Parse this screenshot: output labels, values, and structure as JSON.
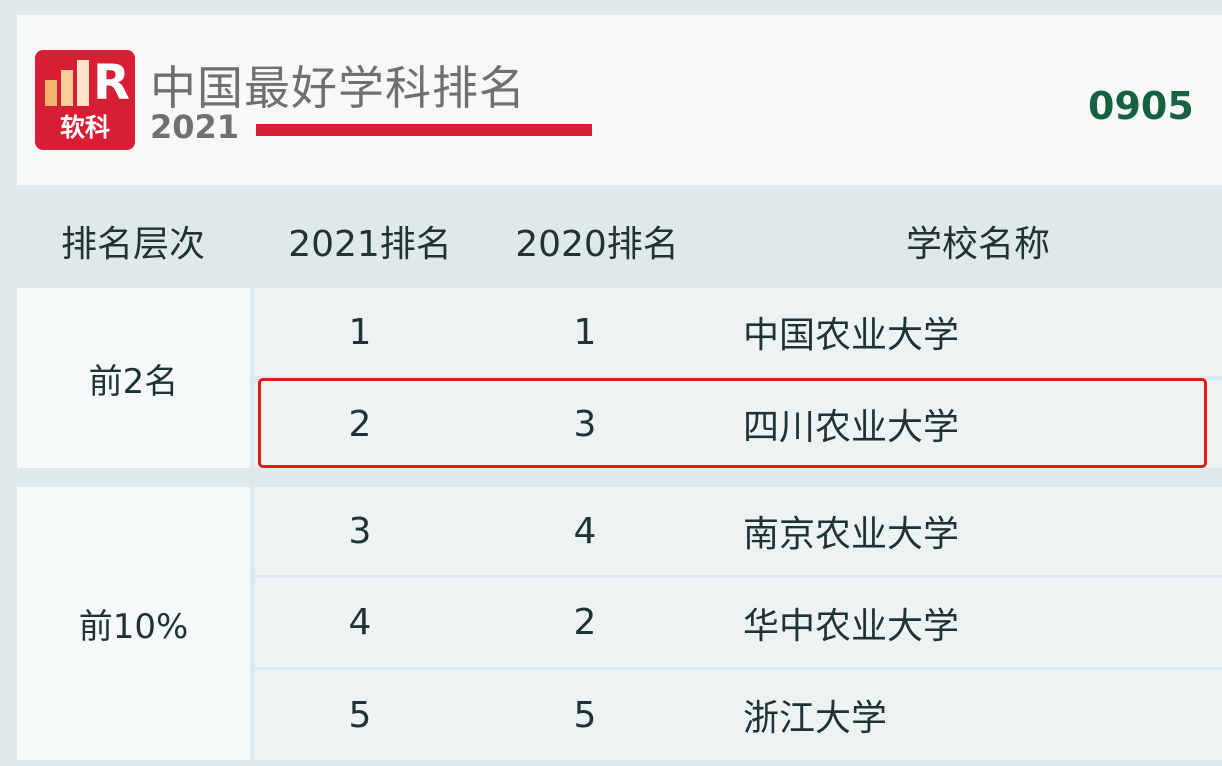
{
  "header": {
    "logo_text": "软科",
    "title": "中国最好学科排名",
    "year": "2021",
    "subject_code": "0905",
    "colors": {
      "brand_red": "#d81e34",
      "code_green": "#17613f",
      "highlight": "#e11a1a"
    }
  },
  "table": {
    "columns": [
      "排名层次",
      "2021排名",
      "2020排名",
      "学校名称"
    ],
    "groups": [
      {
        "tier": "前2名",
        "rows": [
          {
            "rank_2021": "1",
            "rank_2020": "1",
            "school": "中国农业大学",
            "highlighted": false
          },
          {
            "rank_2021": "2",
            "rank_2020": "3",
            "school": "四川农业大学",
            "highlighted": true
          }
        ]
      },
      {
        "tier": "前10%",
        "rows": [
          {
            "rank_2021": "3",
            "rank_2020": "4",
            "school": "南京农业大学",
            "highlighted": false
          },
          {
            "rank_2021": "4",
            "rank_2020": "2",
            "school": "华中农业大学",
            "highlighted": false
          },
          {
            "rank_2021": "5",
            "rank_2020": "5",
            "school": "浙江大学",
            "highlighted": false
          }
        ]
      }
    ]
  }
}
